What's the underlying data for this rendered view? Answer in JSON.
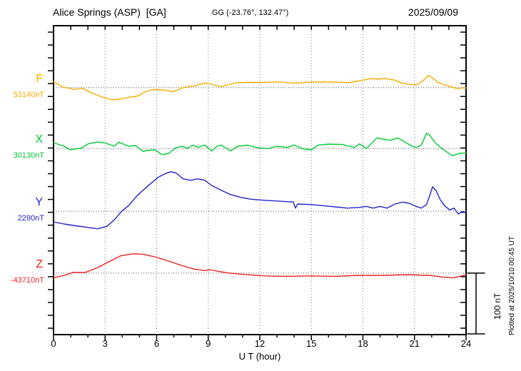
{
  "header": {
    "station_title": "Alice Springs (ASP)  [GA]",
    "geo_coords": "GG (-23.76°, 132.47°)",
    "date": "2025/09/09"
  },
  "x_axis": {
    "label": "U T (hour)",
    "tick_labels": [
      "0",
      "3",
      "6",
      "9",
      "12",
      "15",
      "18",
      "21",
      "24"
    ],
    "range_hours": [
      0,
      24
    ],
    "major_tick_interval_hours": 3,
    "minor_tick_interval_hours": 1
  },
  "scale_bar": {
    "label": "100 nT",
    "nT": 100
  },
  "footer_note": "Plotted at 2025/10/10 00:45 UT",
  "colors": {
    "F": "#F8AB00",
    "X": "#00CC33",
    "Y": "#2424CC",
    "Z": "#EE2222",
    "grid": "#777777",
    "baseline_dots": "#444444",
    "frame": "#000000"
  },
  "chart_data": {
    "type": "line",
    "title": "Magnetogram - Alice Springs (ASP) [GA] - 2025/09/09",
    "xlabel": "U T (hour)",
    "x_range": [
      0,
      24
    ],
    "grid": "dotted vertical every 3 h; dotted horizontal baseline per component",
    "y_unit": "nT offset from component baseline",
    "scale_reference_nT": 100,
    "series": [
      {
        "name": "F",
        "baseline_label": "53140nT",
        "baseline_value_nT": 53140,
        "points": [
          [
            0,
            9.8
          ],
          [
            0.54,
            0.8
          ],
          [
            1.25,
            -3.3
          ],
          [
            1.66,
            -0.9
          ],
          [
            2.28,
            -9.7
          ],
          [
            3,
            -17.3
          ],
          [
            3.45,
            -20.2
          ],
          [
            3.94,
            -18.5
          ],
          [
            4.36,
            -16.1
          ],
          [
            4.9,
            -13.8
          ],
          [
            5.3,
            -7.4
          ],
          [
            5.7,
            -3.9
          ],
          [
            6.1,
            -3.3
          ],
          [
            6.5,
            -4.4
          ],
          [
            6.85,
            -6.5
          ],
          [
            7.14,
            -5
          ],
          [
            7.47,
            -0.9
          ],
          [
            7.8,
            1.4
          ],
          [
            8.2,
            2.6
          ],
          [
            8.64,
            6.1
          ],
          [
            8.93,
            7.3
          ],
          [
            9.2,
            5.5
          ],
          [
            9.55,
            2.6
          ],
          [
            9.8,
            1.4
          ],
          [
            10.2,
            4.9
          ],
          [
            10.6,
            7.8
          ],
          [
            11.2,
            8.7
          ],
          [
            12,
            8.4
          ],
          [
            13.1,
            9.2
          ],
          [
            14,
            7
          ],
          [
            15,
            9
          ],
          [
            16.1,
            9
          ],
          [
            17.2,
            8.2
          ],
          [
            17.85,
            11.3
          ],
          [
            18.5,
            14.9
          ],
          [
            18.9,
            13.7
          ],
          [
            19.3,
            14.9
          ],
          [
            19.85,
            12.2
          ],
          [
            20.3,
            7
          ],
          [
            20.7,
            5.1
          ],
          [
            21.1,
            4.3
          ],
          [
            21.5,
            11
          ],
          [
            21.8,
            19.9
          ],
          [
            22.1,
            14.9
          ],
          [
            22.35,
            8.2
          ],
          [
            22.75,
            4.3
          ],
          [
            23.2,
            0.5
          ],
          [
            23.5,
            -1.9
          ],
          [
            23.75,
            -0.7
          ],
          [
            24,
            -0.7
          ]
        ]
      },
      {
        "name": "X",
        "baseline_label": "30130nT",
        "baseline_value_nT": 30130,
        "points": [
          [
            0,
            9.7
          ],
          [
            0.62,
            3.9
          ],
          [
            0.95,
            -2
          ],
          [
            1.3,
            -0.2
          ],
          [
            1.58,
            0.4
          ],
          [
            2,
            7.7
          ],
          [
            2.57,
            10.9
          ],
          [
            3,
            9.4
          ],
          [
            3.53,
            3.9
          ],
          [
            3.8,
            10.5
          ],
          [
            4.36,
            3.9
          ],
          [
            4.77,
            5
          ],
          [
            5.19,
            -4.3
          ],
          [
            5.6,
            -2.6
          ],
          [
            5.9,
            -2
          ],
          [
            6.3,
            -9.8
          ],
          [
            6.7,
            -7.8
          ],
          [
            7.14,
            1.9
          ],
          [
            7.55,
            3.9
          ],
          [
            7.76,
            0
          ],
          [
            8.1,
            5.8
          ],
          [
            8.4,
            2.1
          ],
          [
            8.8,
            5.8
          ],
          [
            9.2,
            -4
          ],
          [
            9.5,
            3.9
          ],
          [
            9.76,
            5.8
          ],
          [
            10.3,
            -4
          ],
          [
            10.7,
            3.9
          ],
          [
            11.3,
            5.6
          ],
          [
            11.8,
            1.9
          ],
          [
            12.5,
            0
          ],
          [
            12.95,
            3.9
          ],
          [
            13.6,
            1.9
          ],
          [
            14,
            5.8
          ],
          [
            14.45,
            0
          ],
          [
            15,
            -2
          ],
          [
            15.4,
            5.8
          ],
          [
            16,
            7.4
          ],
          [
            16.8,
            6.8
          ],
          [
            17.5,
            1.9
          ],
          [
            17.8,
            7.7
          ],
          [
            18.2,
            0
          ],
          [
            18.8,
            17.5
          ],
          [
            19.2,
            15.6
          ],
          [
            19.6,
            13.6
          ],
          [
            20,
            17.5
          ],
          [
            20.4,
            11.7
          ],
          [
            20.85,
            3.9
          ],
          [
            21.1,
            1.9
          ],
          [
            21.4,
            5.8
          ],
          [
            21.7,
            25.3
          ],
          [
            21.9,
            21.4
          ],
          [
            22.2,
            9.7
          ],
          [
            22.6,
            0
          ],
          [
            22.9,
            -5.8
          ],
          [
            23.2,
            -11.7
          ],
          [
            23.6,
            -7.8
          ],
          [
            24,
            -7
          ]
        ]
      },
      {
        "name": "Y",
        "baseline_label": "2290nT",
        "baseline_value_nT": 2290,
        "points": [
          [
            0,
            -17.5
          ],
          [
            0.62,
            -21.1
          ],
          [
            1.16,
            -23.4
          ],
          [
            1.87,
            -26.1
          ],
          [
            2.57,
            -28.9
          ],
          [
            3.1,
            -24.9
          ],
          [
            3.53,
            -14.4
          ],
          [
            3.94,
            -0.8
          ],
          [
            4.36,
            9
          ],
          [
            4.9,
            26.5
          ],
          [
            5.6,
            44.1
          ],
          [
            6.1,
            55.8
          ],
          [
            6.56,
            62.3
          ],
          [
            6.85,
            64.7
          ],
          [
            7.14,
            62.3
          ],
          [
            7.55,
            53
          ],
          [
            7.97,
            50.6
          ],
          [
            8.4,
            53
          ],
          [
            8.8,
            50.6
          ],
          [
            9.2,
            42.1
          ],
          [
            9.76,
            34.3
          ],
          [
            10.3,
            27.3
          ],
          [
            10.9,
            22.6
          ],
          [
            11.5,
            19.5
          ],
          [
            12.25,
            17.9
          ],
          [
            12.95,
            16.7
          ],
          [
            13.6,
            15.6
          ],
          [
            13.95,
            15.2
          ],
          [
            14.07,
            5
          ],
          [
            14.2,
            11.7
          ],
          [
            15,
            10.9
          ],
          [
            15.7,
            9
          ],
          [
            16.4,
            7
          ],
          [
            17.1,
            5
          ],
          [
            17.8,
            6.2
          ],
          [
            18.2,
            7.8
          ],
          [
            18.6,
            5
          ],
          [
            19,
            7.8
          ],
          [
            19.4,
            5
          ],
          [
            19.85,
            11.7
          ],
          [
            20.3,
            14.9
          ],
          [
            20.7,
            12.9
          ],
          [
            21.1,
            7.8
          ],
          [
            21.4,
            5
          ],
          [
            21.7,
            10.9
          ],
          [
            21.9,
            26.5
          ],
          [
            22.05,
            40.1
          ],
          [
            22.25,
            34.3
          ],
          [
            22.5,
            18.7
          ],
          [
            22.75,
            9
          ],
          [
            23.05,
            2
          ],
          [
            23.3,
            5
          ],
          [
            23.55,
            -4.7
          ],
          [
            23.75,
            -0.8
          ],
          [
            24,
            -1.5
          ]
        ]
      },
      {
        "name": "Z",
        "baseline_label": "-43710nT",
        "baseline_value_nT": -43710,
        "points": [
          [
            0,
            -7.7
          ],
          [
            0.62,
            -3.9
          ],
          [
            1.16,
            1.2
          ],
          [
            1.87,
            1.2
          ],
          [
            2.57,
            9
          ],
          [
            3.24,
            18.7
          ],
          [
            3.94,
            28.5
          ],
          [
            4.65,
            31.6
          ],
          [
            5.3,
            30.4
          ],
          [
            6,
            25.7
          ],
          [
            6.7,
            19.5
          ],
          [
            7.4,
            12.9
          ],
          [
            8.1,
            7
          ],
          [
            8.8,
            4
          ],
          [
            9.1,
            5.5
          ],
          [
            9.5,
            3.2
          ],
          [
            10.2,
            0
          ],
          [
            10.9,
            -1.9
          ],
          [
            12.25,
            -4.7
          ],
          [
            13.6,
            -5.4
          ],
          [
            15,
            -4.7
          ],
          [
            16.4,
            -5.4
          ],
          [
            17.8,
            -3.9
          ],
          [
            19.2,
            -3.9
          ],
          [
            20.55,
            -2.7
          ],
          [
            21.9,
            -3.9
          ],
          [
            22.6,
            -6.5
          ],
          [
            23.3,
            -7.7
          ],
          [
            23.75,
            -4.7
          ],
          [
            24,
            -2.7
          ]
        ]
      }
    ]
  }
}
